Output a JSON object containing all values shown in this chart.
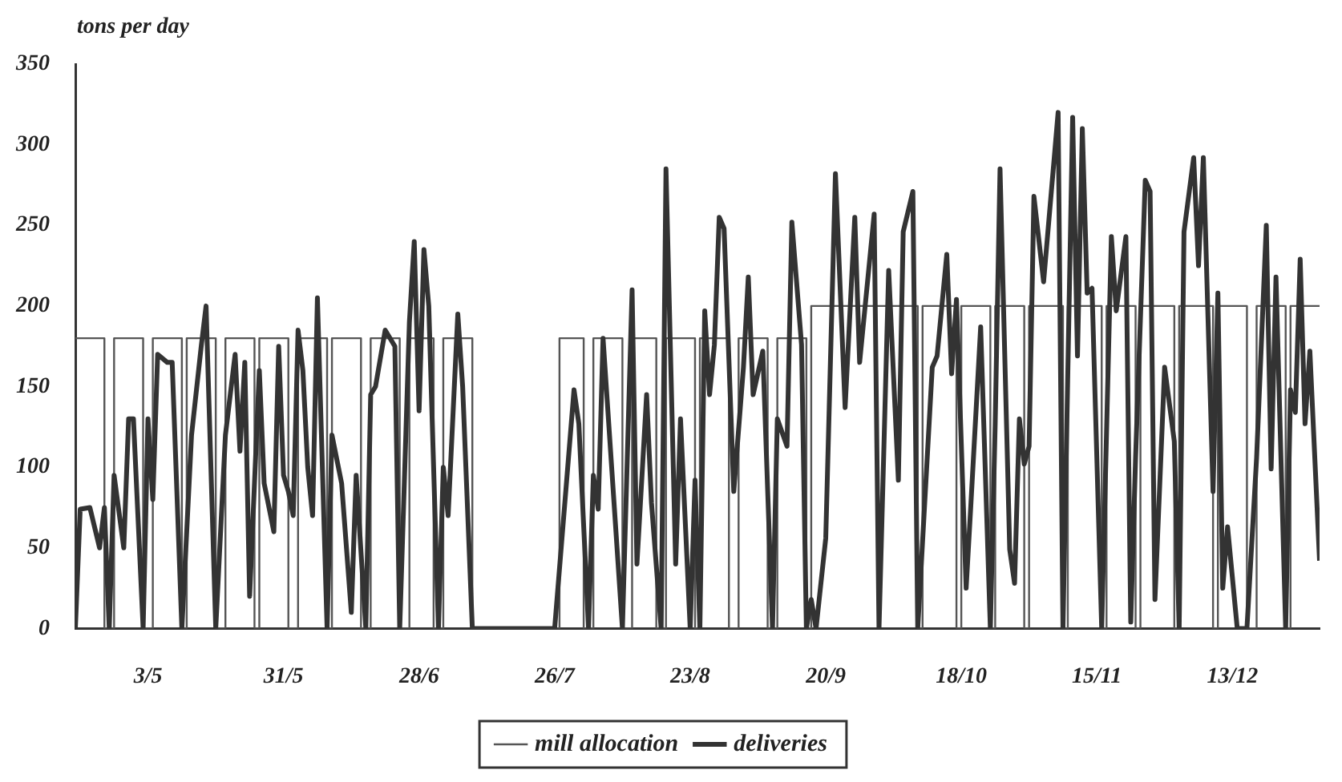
{
  "chart_data": {
    "type": "line",
    "ylabel": "tons per day",
    "xlim": [
      "--04-18",
      "--12-31"
    ],
    "xticks": [
      {
        "value": "--05-03",
        "label": "3/5"
      },
      {
        "value": "--05-31",
        "label": "31/5"
      },
      {
        "value": "--06-28",
        "label": "28/6"
      },
      {
        "value": "--07-26",
        "label": "26/7"
      },
      {
        "value": "--08-23",
        "label": "23/8"
      },
      {
        "value": "--09-20",
        "label": "20/9"
      },
      {
        "value": "--10-18",
        "label": "18/10"
      },
      {
        "value": "--11-15",
        "label": "15/11"
      },
      {
        "value": "--12-13",
        "label": "13/12"
      }
    ],
    "ylim": [
      0,
      350
    ],
    "yticks": [
      0,
      50,
      100,
      150,
      200,
      250,
      300,
      350
    ],
    "grid": false,
    "legend": "bottom",
    "marker": "none",
    "series": [
      {
        "name": "mill allocation",
        "type": "step",
        "color": "#555555",
        "x": [
          "--04-18",
          "--04-24",
          "--04-26",
          "--05-02",
          "--05-04",
          "--05-10",
          "--05-11",
          "--05-17",
          "--05-19",
          "--05-25",
          "--05-26",
          "--06-01",
          "--06-03",
          "--06-09",
          "--06-10",
          "--06-16",
          "--06-18",
          "--06-24",
          "--06-26",
          "--07-01",
          "--07-03",
          "--07-09",
          "--07-27",
          "--08-01",
          "--08-03",
          "--08-09",
          "--08-11",
          "--08-16",
          "--08-18",
          "--08-24",
          "--08-25",
          "--08-31",
          "--09-02",
          "--09-08",
          "--09-10",
          "--09-16",
          "--09-17",
          "--10-09",
          "--10-10",
          "--10-17",
          "--10-18",
          "--10-24",
          "--10-25",
          "--10-31",
          "--11-01",
          "--11-08",
          "--11-09",
          "--11-16",
          "--11-17",
          "--11-23",
          "--11-24",
          "--12-01",
          "--12-02",
          "--12-09",
          "--12-10",
          "--12-16",
          "--12-18",
          "--12-24",
          "--12-25",
          "--12-31"
        ],
        "values": [
          180,
          0,
          180,
          0,
          180,
          0,
          180,
          0,
          180,
          0,
          180,
          0,
          180,
          0,
          180,
          0,
          180,
          0,
          180,
          0,
          180,
          0,
          180,
          0,
          180,
          0,
          180,
          0,
          180,
          0,
          180,
          0,
          180,
          0,
          180,
          0,
          200,
          0,
          200,
          0,
          200,
          0,
          200,
          0,
          200,
          0,
          200,
          0,
          200,
          0,
          200,
          0,
          200,
          0,
          200,
          0,
          200,
          0,
          200,
          200
        ]
      },
      {
        "name": "deliveries",
        "type": "line",
        "color": "#333333",
        "x": [
          "--04-18",
          "--04-19",
          "--04-21",
          "--04-23",
          "--04-24",
          "--04-25",
          "--04-26",
          "--04-28",
          "--04-29",
          "--04-30",
          "--05-02",
          "--05-03",
          "--05-04",
          "--05-05",
          "--05-07",
          "--05-08",
          "--05-10",
          "--05-12",
          "--05-14",
          "--05-15",
          "--05-17",
          "--05-19",
          "--05-21",
          "--05-22",
          "--05-23",
          "--05-24",
          "--05-26",
          "--05-27",
          "--05-29",
          "--05-30",
          "--05-31",
          "--06-01",
          "--06-02",
          "--06-03",
          "--06-04",
          "--06-05",
          "--06-06",
          "--06-07",
          "--06-09",
          "--06-10",
          "--06-12",
          "--06-14",
          "--06-15",
          "--06-17",
          "--06-18",
          "--06-19",
          "--06-21",
          "--06-23",
          "--06-24",
          "--06-26",
          "--06-27",
          "--06-28",
          "--06-29",
          "--06-30",
          "--07-02",
          "--07-03",
          "--07-04",
          "--07-06",
          "--07-07",
          "--07-09",
          "--07-26",
          "--07-30",
          "--07-31",
          "--08-02",
          "--08-03",
          "--08-04",
          "--08-05",
          "--08-09",
          "--08-11",
          "--08-12",
          "--08-14",
          "--08-15",
          "--08-17",
          "--08-18",
          "--08-20",
          "--08-21",
          "--08-23",
          "--08-24",
          "--08-25",
          "--08-26",
          "--08-27",
          "--08-28",
          "--08-29",
          "--08-30",
          "--09-01",
          "--09-03",
          "--09-04",
          "--09-05",
          "--09-07",
          "--09-09",
          "--09-10",
          "--09-12",
          "--09-13",
          "--09-15",
          "--09-16",
          "--09-17",
          "--09-18",
          "--09-20",
          "--09-22",
          "--09-24",
          "--09-26",
          "--09-27",
          "--09-30",
          "--10-01",
          "--10-03",
          "--10-05",
          "--10-06",
          "--10-08",
          "--10-09",
          "--10-12",
          "--10-13",
          "--10-15",
          "--10-16",
          "--10-17",
          "--10-19",
          "--10-20",
          "--10-22",
          "--10-24",
          "--10-25",
          "--10-26",
          "--10-28",
          "--10-29",
          "--10-30",
          "--10-31",
          "--11-01",
          "--11-02",
          "--11-04",
          "--11-07",
          "--11-08",
          "--11-10",
          "--11-11",
          "--11-12",
          "--11-13",
          "--11-14",
          "--11-16",
          "--11-18",
          "--11-19",
          "--11-21",
          "--11-22",
          "--11-23",
          "--11-25",
          "--11-26",
          "--11-27",
          "--11-29",
          "--12-01",
          "--12-02",
          "--12-03",
          "--12-05",
          "--12-06",
          "--12-07",
          "--12-09",
          "--12-10",
          "--12-11",
          "--12-12",
          "--12-14",
          "--12-16",
          "--12-18",
          "--12-20",
          "--12-21",
          "--12-22",
          "--12-24",
          "--12-25",
          "--12-26",
          "--12-27",
          "--12-28",
          "--12-29",
          "--12-31"
        ],
        "values": [
          0,
          74,
          75,
          50,
          75,
          0,
          95,
          50,
          130,
          130,
          0,
          130,
          80,
          170,
          165,
          165,
          0,
          120,
          175,
          200,
          0,
          120,
          170,
          110,
          165,
          20,
          160,
          90,
          60,
          175,
          95,
          85,
          70,
          185,
          160,
          100,
          70,
          205,
          0,
          120,
          90,
          10,
          95,
          0,
          145,
          150,
          185,
          175,
          0,
          190,
          240,
          135,
          235,
          200,
          0,
          100,
          70,
          195,
          150,
          0,
          0,
          148,
          127,
          0,
          95,
          74,
          180,
          0,
          210,
          40,
          145,
          78,
          0,
          285,
          40,
          130,
          0,
          92,
          0,
          197,
          145,
          176,
          255,
          248,
          85,
          162,
          218,
          145,
          172,
          0,
          130,
          113,
          252,
          176,
          0,
          18,
          0,
          56,
          282,
          137,
          255,
          165,
          257,
          0,
          222,
          92,
          246,
          271,
          0,
          162,
          169,
          232,
          158,
          204,
          25,
          78,
          187,
          0,
          127,
          285,
          49,
          28,
          130,
          102,
          113,
          268,
          215,
          320,
          0,
          317,
          169,
          310,
          208,
          211,
          0,
          243,
          197,
          243,
          4,
          106,
          278,
          271,
          18,
          162,
          116,
          0,
          246,
          292,
          225,
          292,
          85,
          208,
          25,
          63,
          0,
          0,
          106,
          250,
          99,
          218,
          0,
          148,
          134,
          229,
          127,
          172,
          42
        ]
      }
    ]
  }
}
